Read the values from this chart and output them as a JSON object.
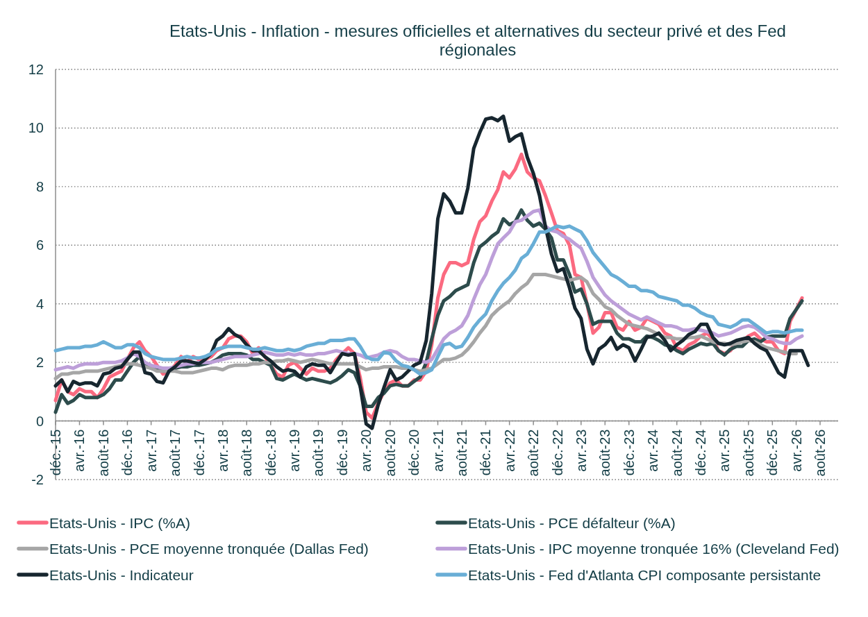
{
  "chart_data": {
    "type": "line",
    "title": "Etats-Unis - Inflation - mesures officielles et alternatives du secteur privé et des Fed régionales",
    "x": [
      "2015-12",
      "2016-01",
      "2016-02",
      "2016-03",
      "2016-04",
      "2016-05",
      "2016-06",
      "2016-07",
      "2016-08",
      "2016-09",
      "2016-10",
      "2016-11",
      "2016-12",
      "2017-01",
      "2017-02",
      "2017-03",
      "2017-04",
      "2017-05",
      "2017-06",
      "2017-07",
      "2017-08",
      "2017-09",
      "2017-10",
      "2017-11",
      "2017-12",
      "2018-01",
      "2018-02",
      "2018-03",
      "2018-04",
      "2018-05",
      "2018-06",
      "2018-07",
      "2018-08",
      "2018-09",
      "2018-10",
      "2018-11",
      "2018-12",
      "2019-01",
      "2019-02",
      "2019-03",
      "2019-04",
      "2019-05",
      "2019-06",
      "2019-07",
      "2019-08",
      "2019-09",
      "2019-10",
      "2019-11",
      "2019-12",
      "2020-01",
      "2020-02",
      "2020-03",
      "2020-04",
      "2020-05",
      "2020-06",
      "2020-07",
      "2020-08",
      "2020-09",
      "2020-10",
      "2020-11",
      "2020-12",
      "2021-01",
      "2021-02",
      "2021-03",
      "2021-04",
      "2021-05",
      "2021-06",
      "2021-07",
      "2021-08",
      "2021-09",
      "2021-10",
      "2021-11",
      "2021-12",
      "2022-01",
      "2022-02",
      "2022-03",
      "2022-04",
      "2022-05",
      "2022-06",
      "2022-07",
      "2022-08",
      "2022-09",
      "2022-10",
      "2022-11",
      "2022-12",
      "2023-01",
      "2023-02",
      "2023-03",
      "2023-04",
      "2023-05",
      "2023-06",
      "2023-07",
      "2023-08",
      "2023-09",
      "2023-10",
      "2023-11",
      "2023-12",
      "2024-01",
      "2024-02",
      "2024-03",
      "2024-04",
      "2024-05",
      "2024-06",
      "2024-07",
      "2024-08",
      "2024-09",
      "2024-10",
      "2024-11",
      "2024-12",
      "2025-01",
      "2025-02",
      "2025-03",
      "2025-04",
      "2025-05",
      "2025-06",
      "2025-07",
      "2025-08",
      "2025-09",
      "2025-10",
      "2025-11",
      "2025-12",
      "2026-01",
      "2026-02",
      "2026-03",
      "2026-04",
      "2026-05",
      "2026-06"
    ],
    "xlim": [
      "2015-12",
      "2026-11"
    ],
    "xticks": [
      {
        "value": "2015-12",
        "label": "déc.-15"
      },
      {
        "value": "2016-04",
        "label": "avr.-16"
      },
      {
        "value": "2016-08",
        "label": "août-16"
      },
      {
        "value": "2016-12",
        "label": "déc.-16"
      },
      {
        "value": "2017-04",
        "label": "avr.-17"
      },
      {
        "value": "2017-08",
        "label": "août-17"
      },
      {
        "value": "2017-12",
        "label": "déc.-17"
      },
      {
        "value": "2018-04",
        "label": "avr.-18"
      },
      {
        "value": "2018-08",
        "label": "août-18"
      },
      {
        "value": "2018-12",
        "label": "déc.-18"
      },
      {
        "value": "2019-04",
        "label": "avr.-19"
      },
      {
        "value": "2019-08",
        "label": "août-19"
      },
      {
        "value": "2019-12",
        "label": "déc.-19"
      },
      {
        "value": "2020-04",
        "label": "avr.-20"
      },
      {
        "value": "2020-08",
        "label": "août-20"
      },
      {
        "value": "2020-12",
        "label": "déc.-20"
      },
      {
        "value": "2021-04",
        "label": "avr.-21"
      },
      {
        "value": "2021-08",
        "label": "août-21"
      },
      {
        "value": "2021-12",
        "label": "déc.-21"
      },
      {
        "value": "2022-04",
        "label": "avr.-22"
      },
      {
        "value": "2022-08",
        "label": "août-22"
      },
      {
        "value": "2022-12",
        "label": "déc.-22"
      },
      {
        "value": "2023-04",
        "label": "avr.-23"
      },
      {
        "value": "2023-08",
        "label": "août-23"
      },
      {
        "value": "2023-12",
        "label": "déc.-23"
      },
      {
        "value": "2024-04",
        "label": "avr.-24"
      },
      {
        "value": "2024-08",
        "label": "août-24"
      },
      {
        "value": "2024-12",
        "label": "déc.-24"
      },
      {
        "value": "2025-04",
        "label": "avr.-25"
      },
      {
        "value": "2025-08",
        "label": "août-25"
      },
      {
        "value": "2025-12",
        "label": "déc.-25"
      },
      {
        "value": "2026-04",
        "label": "avr.-26"
      },
      {
        "value": "2026-08",
        "label": "août-26"
      }
    ],
    "ylim": [
      -2,
      12
    ],
    "yticks": [
      -2,
      0,
      2,
      4,
      6,
      8,
      10,
      12
    ],
    "grid": "y",
    "legend": "bottom",
    "series": [
      {
        "name": "Etats-Unis - IPC (%A)",
        "color": "#fb6a80",
        "values": [
          0.7,
          1.4,
          1.0,
          0.9,
          1.1,
          1.0,
          1.0,
          0.8,
          1.1,
          1.5,
          1.6,
          1.7,
          2.1,
          2.5,
          2.7,
          2.4,
          2.2,
          1.9,
          1.6,
          1.7,
          1.9,
          2.2,
          2.0,
          2.2,
          2.1,
          2.1,
          2.2,
          2.4,
          2.5,
          2.8,
          2.9,
          2.9,
          2.7,
          2.3,
          2.5,
          2.2,
          1.9,
          1.6,
          1.5,
          1.9,
          2.0,
          1.8,
          1.6,
          1.8,
          1.7,
          1.7,
          1.8,
          2.1,
          2.3,
          2.5,
          2.3,
          1.5,
          0.3,
          0.1,
          0.6,
          1.0,
          1.3,
          1.4,
          1.2,
          1.2,
          1.4,
          1.4,
          1.7,
          2.6,
          4.2,
          5.0,
          5.4,
          5.4,
          5.3,
          5.4,
          6.2,
          6.8,
          7.0,
          7.5,
          7.9,
          8.5,
          8.3,
          8.6,
          9.1,
          8.5,
          8.3,
          8.2,
          7.7,
          7.1,
          6.5,
          6.4,
          6.0,
          5.0,
          4.9,
          4.0,
          3.0,
          3.2,
          3.7,
          3.7,
          3.2,
          3.1,
          3.4,
          3.1,
          3.2,
          3.5,
          3.4,
          3.3,
          3.0,
          2.9,
          2.5,
          2.4,
          2.6,
          2.7,
          2.9,
          3.0,
          2.8,
          2.4,
          2.3,
          2.4,
          2.7,
          2.7,
          2.9,
          3.0,
          2.8,
          2.7,
          2.7,
          2.4,
          2.3,
          3.4,
          3.8,
          4.2,
          null
        ]
      },
      {
        "name": "Etats-Unis - PCE défalteur (%A)",
        "color": "#2d4c4c",
        "values": [
          0.3,
          0.9,
          0.6,
          0.7,
          0.9,
          0.8,
          0.8,
          0.8,
          0.9,
          1.1,
          1.4,
          1.4,
          1.7,
          2.0,
          2.2,
          1.9,
          1.8,
          1.75,
          1.7,
          1.7,
          1.8,
          1.85,
          1.85,
          1.9,
          1.9,
          1.95,
          2.0,
          2.1,
          2.25,
          2.3,
          2.3,
          2.3,
          2.25,
          2.1,
          2.1,
          2.0,
          1.9,
          1.45,
          1.4,
          1.5,
          1.6,
          1.5,
          1.4,
          1.45,
          1.4,
          1.35,
          1.3,
          1.4,
          1.55,
          1.75,
          1.65,
          1.2,
          0.5,
          0.5,
          0.8,
          0.95,
          1.2,
          1.25,
          1.2,
          1.2,
          1.35,
          1.5,
          2.0,
          2.8,
          3.6,
          4.1,
          4.25,
          4.45,
          4.55,
          4.65,
          5.4,
          5.95,
          6.1,
          6.3,
          6.45,
          6.9,
          6.7,
          6.8,
          7.2,
          6.85,
          6.65,
          6.75,
          6.55,
          6.25,
          5.5,
          5.5,
          5.0,
          4.4,
          4.5,
          4.0,
          3.3,
          3.4,
          3.4,
          3.4,
          3.0,
          2.8,
          2.8,
          2.7,
          2.7,
          2.9,
          2.85,
          2.75,
          2.6,
          2.55,
          2.4,
          2.3,
          2.45,
          2.55,
          2.65,
          2.6,
          2.65,
          2.4,
          2.25,
          2.45,
          2.55,
          2.55,
          2.75,
          2.8,
          2.7,
          2.85,
          2.9,
          2.9,
          2.9,
          3.5,
          3.8,
          4.1,
          null
        ]
      },
      {
        "name": "Etats-Unis - PCE moyenne tronquée (Dallas Fed)",
        "color": "#a6a6a6",
        "values": [
          1.45,
          1.6,
          1.6,
          1.65,
          1.65,
          1.7,
          1.7,
          1.7,
          1.75,
          1.8,
          1.85,
          1.9,
          1.95,
          1.95,
          1.9,
          1.85,
          1.8,
          1.7,
          1.7,
          1.7,
          1.7,
          1.65,
          1.65,
          1.65,
          1.7,
          1.75,
          1.8,
          1.8,
          1.75,
          1.85,
          1.9,
          1.9,
          1.9,
          1.95,
          1.95,
          2.0,
          2.0,
          2.05,
          2.05,
          2.1,
          2.05,
          2.0,
          2.05,
          2.1,
          2.05,
          2.0,
          1.95,
          1.95,
          1.95,
          1.95,
          1.95,
          1.85,
          1.75,
          1.8,
          1.8,
          1.85,
          1.85,
          1.85,
          1.8,
          1.8,
          1.75,
          1.7,
          1.75,
          1.8,
          1.95,
          2.1,
          2.1,
          2.15,
          2.25,
          2.45,
          2.7,
          3.0,
          3.25,
          3.6,
          3.8,
          3.95,
          4.1,
          4.35,
          4.55,
          4.7,
          5.0,
          5.0,
          5.0,
          4.95,
          4.9,
          4.85,
          4.8,
          4.85,
          4.9,
          4.75,
          4.35,
          4.15,
          3.9,
          3.8,
          3.6,
          3.45,
          3.3,
          3.25,
          3.2,
          3.15,
          3.05,
          2.95,
          2.85,
          2.85,
          2.8,
          2.8,
          2.85,
          2.85,
          2.9,
          2.8,
          2.7,
          2.65,
          2.65,
          2.6,
          2.65,
          2.7,
          2.75,
          2.7,
          2.6,
          2.5,
          2.45,
          2.4,
          2.35,
          2.3,
          2.3,
          null,
          null
        ]
      },
      {
        "name": "Etats-Unis - IPC moyenne tronquée 16% (Cleveland Fed)",
        "color": "#bd9fd9",
        "values": [
          1.75,
          1.8,
          1.85,
          1.8,
          1.9,
          1.95,
          1.95,
          1.95,
          2.0,
          2.0,
          2.0,
          2.05,
          2.15,
          2.3,
          2.2,
          2.0,
          1.9,
          1.85,
          1.8,
          1.8,
          1.85,
          1.9,
          1.95,
          1.95,
          2.0,
          2.0,
          2.0,
          2.05,
          2.1,
          2.15,
          2.2,
          2.2,
          2.2,
          2.25,
          2.3,
          2.35,
          2.3,
          2.25,
          2.25,
          2.3,
          2.25,
          2.3,
          2.25,
          2.25,
          2.3,
          2.3,
          2.35,
          2.4,
          2.35,
          2.3,
          2.3,
          2.25,
          2.15,
          2.2,
          2.25,
          2.35,
          2.4,
          2.35,
          2.2,
          2.1,
          2.1,
          2.05,
          2.0,
          2.1,
          2.45,
          2.8,
          3.0,
          3.1,
          3.25,
          3.6,
          4.15,
          4.65,
          5.0,
          5.55,
          6.05,
          6.25,
          6.45,
          6.8,
          6.85,
          7.0,
          7.15,
          7.2,
          6.65,
          6.5,
          6.45,
          6.3,
          6.2,
          6.05,
          5.9,
          5.45,
          4.9,
          4.6,
          4.3,
          4.1,
          3.95,
          3.8,
          3.65,
          3.55,
          3.45,
          3.55,
          3.45,
          3.35,
          3.25,
          3.25,
          3.2,
          3.1,
          3.1,
          3.15,
          3.1,
          3.05,
          3.0,
          2.9,
          2.95,
          3.0,
          3.1,
          3.2,
          3.25,
          3.2,
          3.05,
          2.85,
          2.8,
          2.7,
          2.65,
          2.65,
          2.8,
          2.9,
          null
        ]
      },
      {
        "name": "Etats-Unis - Indicateur",
        "color": "#17262f",
        "values": [
          1.2,
          1.4,
          1.0,
          1.35,
          1.25,
          1.3,
          1.3,
          1.2,
          1.6,
          1.65,
          1.8,
          1.85,
          2.1,
          2.35,
          2.35,
          1.65,
          1.6,
          1.35,
          1.3,
          1.7,
          1.85,
          2.05,
          2.05,
          2.0,
          1.95,
          2.1,
          2.3,
          2.75,
          2.9,
          3.15,
          2.95,
          2.85,
          2.6,
          2.4,
          2.4,
          2.2,
          2.05,
          1.85,
          1.7,
          1.75,
          1.7,
          1.5,
          1.85,
          1.95,
          1.9,
          1.9,
          1.65,
          2.0,
          2.3,
          2.25,
          2.3,
          1.2,
          -0.1,
          -0.25,
          0.55,
          1.15,
          1.75,
          1.4,
          1.5,
          1.7,
          1.9,
          2.0,
          2.75,
          4.35,
          6.9,
          7.75,
          7.5,
          7.1,
          7.1,
          7.95,
          9.3,
          9.85,
          10.3,
          10.35,
          10.25,
          10.4,
          9.55,
          9.7,
          9.8,
          9.0,
          8.45,
          7.7,
          6.65,
          5.7,
          5.1,
          5.2,
          4.55,
          3.85,
          3.5,
          2.45,
          1.95,
          2.45,
          2.6,
          2.85,
          2.45,
          2.6,
          2.5,
          2.05,
          2.45,
          2.85,
          2.9,
          3.0,
          2.75,
          2.4,
          2.6,
          2.75,
          2.95,
          3.05,
          3.3,
          3.3,
          2.85,
          2.65,
          2.6,
          2.65,
          2.75,
          2.8,
          2.85,
          2.65,
          2.5,
          2.4,
          2.05,
          1.65,
          1.5,
          2.4,
          2.4,
          2.4,
          1.9
        ]
      },
      {
        "name": "Etats-Unis - Fed d'Atlanta CPI composante persistante",
        "color": "#69aed6",
        "values": [
          2.4,
          2.45,
          2.5,
          2.5,
          2.5,
          2.55,
          2.55,
          2.6,
          2.7,
          2.6,
          2.5,
          2.5,
          2.6,
          2.6,
          2.5,
          2.3,
          2.2,
          2.15,
          2.1,
          2.1,
          2.1,
          2.15,
          2.2,
          2.15,
          2.15,
          2.2,
          2.3,
          2.45,
          2.5,
          2.55,
          2.55,
          2.55,
          2.5,
          2.45,
          2.45,
          2.5,
          2.45,
          2.4,
          2.4,
          2.45,
          2.4,
          2.45,
          2.55,
          2.6,
          2.65,
          2.65,
          2.75,
          2.75,
          2.75,
          2.8,
          2.8,
          2.55,
          2.2,
          2.1,
          2.1,
          2.35,
          2.3,
          2.05,
          1.9,
          1.85,
          1.75,
          1.6,
          1.65,
          1.75,
          2.2,
          2.6,
          2.65,
          2.5,
          2.55,
          2.85,
          3.2,
          3.45,
          3.65,
          4.1,
          4.45,
          4.7,
          4.9,
          5.15,
          5.55,
          5.7,
          6.05,
          6.45,
          6.45,
          6.55,
          6.65,
          6.6,
          6.65,
          6.55,
          6.45,
          6.15,
          5.75,
          5.5,
          5.25,
          5.0,
          4.9,
          4.75,
          4.6,
          4.6,
          4.45,
          4.45,
          4.4,
          4.25,
          4.2,
          4.15,
          4.1,
          3.95,
          3.95,
          3.85,
          3.7,
          3.6,
          3.55,
          3.3,
          3.25,
          3.2,
          3.3,
          3.45,
          3.45,
          3.3,
          3.15,
          3.0,
          3.05,
          3.05,
          3.0,
          3.05,
          3.1,
          3.1,
          null
        ]
      }
    ]
  }
}
